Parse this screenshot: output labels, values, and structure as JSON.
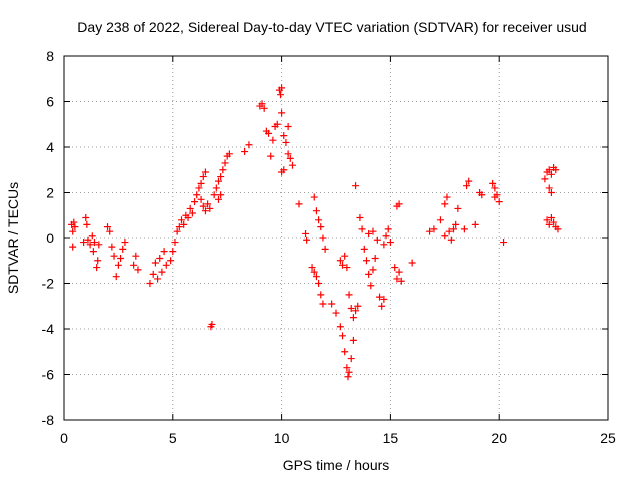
{
  "chart_data": {
    "type": "scatter",
    "title": "Day 238 of 2022, Sidereal Day-to-day VTEC variation (SDTVAR) for receiver usud",
    "xlabel": "GPS time / hours",
    "ylabel": "SDTVAR / TECUs",
    "xlim": [
      0,
      25
    ],
    "ylim": [
      -8,
      8
    ],
    "xticks": [
      0,
      5,
      10,
      15,
      20,
      25
    ],
    "yticks": [
      -8,
      -6,
      -4,
      -2,
      0,
      2,
      4,
      6,
      8
    ],
    "grid": true,
    "marker": "plus",
    "color": "#ff0000",
    "series": [
      {
        "values": [
          [
            0.35,
            0.6
          ],
          [
            0.4,
            0.3
          ],
          [
            0.45,
            0.7
          ],
          [
            0.5,
            0.5
          ],
          [
            0.4,
            -0.4
          ],
          [
            0.9,
            -0.2
          ],
          [
            1.0,
            0.9
          ],
          [
            1.05,
            0.6
          ],
          [
            1.1,
            -0.1
          ],
          [
            1.2,
            -0.3
          ],
          [
            1.3,
            0.1
          ],
          [
            1.35,
            -0.6
          ],
          [
            1.4,
            -0.2
          ],
          [
            1.5,
            -1.3
          ],
          [
            1.55,
            -1.0
          ],
          [
            1.6,
            -0.3
          ],
          [
            2.0,
            0.5
          ],
          [
            2.1,
            0.3
          ],
          [
            2.2,
            -0.4
          ],
          [
            2.3,
            -0.8
          ],
          [
            2.4,
            -1.7
          ],
          [
            2.5,
            -1.2
          ],
          [
            2.6,
            -0.9
          ],
          [
            2.7,
            -0.5
          ],
          [
            2.8,
            -0.2
          ],
          [
            3.2,
            -1.2
          ],
          [
            3.3,
            -0.8
          ],
          [
            3.4,
            -1.4
          ],
          [
            3.95,
            -2.0
          ],
          [
            4.1,
            -1.6
          ],
          [
            4.2,
            -1.1
          ],
          [
            4.3,
            -1.8
          ],
          [
            4.4,
            -0.9
          ],
          [
            4.5,
            -1.5
          ],
          [
            4.6,
            -0.6
          ],
          [
            4.7,
            -1.2
          ],
          [
            4.9,
            -1.0
          ],
          [
            5.0,
            -0.6
          ],
          [
            5.1,
            -0.2
          ],
          [
            5.2,
            0.3
          ],
          [
            5.3,
            0.5
          ],
          [
            5.4,
            0.8
          ],
          [
            5.5,
            0.6
          ],
          [
            5.6,
            1.0
          ],
          [
            5.7,
            0.9
          ],
          [
            5.8,
            1.3
          ],
          [
            5.9,
            1.1
          ],
          [
            6.0,
            1.6
          ],
          [
            6.1,
            1.9
          ],
          [
            6.2,
            2.2
          ],
          [
            6.3,
            2.4
          ],
          [
            6.4,
            2.7
          ],
          [
            6.5,
            2.9
          ],
          [
            6.3,
            1.7
          ],
          [
            6.4,
            1.4
          ],
          [
            6.5,
            1.2
          ],
          [
            6.6,
            1.5
          ],
          [
            6.7,
            1.3
          ],
          [
            6.8,
            -3.8
          ],
          [
            6.75,
            -3.9
          ],
          [
            6.9,
            1.9
          ],
          [
            7.0,
            2.2
          ],
          [
            7.1,
            2.5
          ],
          [
            7.2,
            2.7
          ],
          [
            7.3,
            3.0
          ],
          [
            7.4,
            3.3
          ],
          [
            7.5,
            3.6
          ],
          [
            7.6,
            3.7
          ],
          [
            7.1,
            1.7
          ],
          [
            7.2,
            1.9
          ],
          [
            8.3,
            3.8
          ],
          [
            8.5,
            4.1
          ],
          [
            9.0,
            5.8
          ],
          [
            9.1,
            5.9
          ],
          [
            9.2,
            5.7
          ],
          [
            9.3,
            4.7
          ],
          [
            9.4,
            4.6
          ],
          [
            9.5,
            3.6
          ],
          [
            9.6,
            4.3
          ],
          [
            9.7,
            4.9
          ],
          [
            9.8,
            5.0
          ],
          [
            9.9,
            6.5
          ],
          [
            10.0,
            6.6
          ],
          [
            9.95,
            6.3
          ],
          [
            10.0,
            5.5
          ],
          [
            10.1,
            4.5
          ],
          [
            10.2,
            4.2
          ],
          [
            10.3,
            3.7
          ],
          [
            10.4,
            3.5
          ],
          [
            10.5,
            3.2
          ],
          [
            10.1,
            3.0
          ],
          [
            10.0,
            2.9
          ],
          [
            10.3,
            4.9
          ],
          [
            10.8,
            1.5
          ],
          [
            11.1,
            0.2
          ],
          [
            11.15,
            -0.1
          ],
          [
            11.4,
            -1.3
          ],
          [
            11.5,
            -1.5
          ],
          [
            11.6,
            -1.7
          ],
          [
            11.7,
            -2.0
          ],
          [
            11.8,
            -2.5
          ],
          [
            11.9,
            -2.9
          ],
          [
            11.5,
            1.8
          ],
          [
            11.6,
            1.2
          ],
          [
            11.7,
            0.8
          ],
          [
            11.8,
            0.5
          ],
          [
            11.9,
            0.0
          ],
          [
            12.0,
            -0.5
          ],
          [
            12.3,
            -2.9
          ],
          [
            12.5,
            -3.3
          ],
          [
            12.7,
            -3.9
          ],
          [
            12.8,
            -4.3
          ],
          [
            12.9,
            -5.0
          ],
          [
            13.0,
            -5.7
          ],
          [
            13.05,
            -6.1
          ],
          [
            13.1,
            -5.9
          ],
          [
            13.2,
            -5.3
          ],
          [
            13.3,
            -4.5
          ],
          [
            12.7,
            -1.0
          ],
          [
            12.8,
            -1.2
          ],
          [
            12.9,
            -0.8
          ],
          [
            13.0,
            -1.3
          ],
          [
            13.1,
            -2.5
          ],
          [
            13.2,
            -3.1
          ],
          [
            13.3,
            -3.5
          ],
          [
            13.4,
            -3.2
          ],
          [
            13.5,
            -3.0
          ],
          [
            13.4,
            2.3
          ],
          [
            13.6,
            0.9
          ],
          [
            13.7,
            0.4
          ],
          [
            13.8,
            -0.5
          ],
          [
            13.9,
            -1.0
          ],
          [
            14.0,
            -1.6
          ],
          [
            14.1,
            -2.1
          ],
          [
            14.2,
            -1.4
          ],
          [
            14.3,
            -0.9
          ],
          [
            14.0,
            0.2
          ],
          [
            14.2,
            0.3
          ],
          [
            14.4,
            -0.1
          ],
          [
            14.5,
            -2.6
          ],
          [
            14.6,
            -3.0
          ],
          [
            14.7,
            -2.7
          ],
          [
            14.7,
            -0.3
          ],
          [
            14.8,
            0.1
          ],
          [
            14.9,
            0.4
          ],
          [
            15.0,
            -0.2
          ],
          [
            15.2,
            -1.3
          ],
          [
            15.3,
            -1.8
          ],
          [
            15.4,
            -1.5
          ],
          [
            15.5,
            -1.9
          ],
          [
            15.3,
            1.4
          ],
          [
            15.4,
            1.5
          ],
          [
            16.0,
            -1.1
          ],
          [
            16.8,
            0.3
          ],
          [
            17.0,
            0.4
          ],
          [
            17.3,
            0.8
          ],
          [
            17.5,
            1.5
          ],
          [
            17.6,
            1.8
          ],
          [
            17.7,
            0.3
          ],
          [
            17.8,
            -0.1
          ],
          [
            17.9,
            0.4
          ],
          [
            18.0,
            0.6
          ],
          [
            18.1,
            1.3
          ],
          [
            17.5,
            0.1
          ],
          [
            18.4,
            0.4
          ],
          [
            18.5,
            2.3
          ],
          [
            18.6,
            2.5
          ],
          [
            18.9,
            0.6
          ],
          [
            19.1,
            2.0
          ],
          [
            19.2,
            1.9
          ],
          [
            19.7,
            2.4
          ],
          [
            19.8,
            2.2
          ],
          [
            19.9,
            1.9
          ],
          [
            20.0,
            1.6
          ],
          [
            19.8,
            1.8
          ],
          [
            20.2,
            -0.2
          ],
          [
            22.1,
            2.6
          ],
          [
            22.2,
            2.9
          ],
          [
            22.3,
            3.0
          ],
          [
            22.4,
            2.8
          ],
          [
            22.5,
            3.1
          ],
          [
            22.6,
            3.0
          ],
          [
            22.3,
            2.2
          ],
          [
            22.4,
            2.0
          ],
          [
            22.2,
            0.8
          ],
          [
            22.3,
            0.6
          ],
          [
            22.4,
            0.9
          ],
          [
            22.5,
            0.7
          ],
          [
            22.6,
            0.5
          ],
          [
            22.7,
            0.4
          ]
        ]
      }
    ]
  }
}
